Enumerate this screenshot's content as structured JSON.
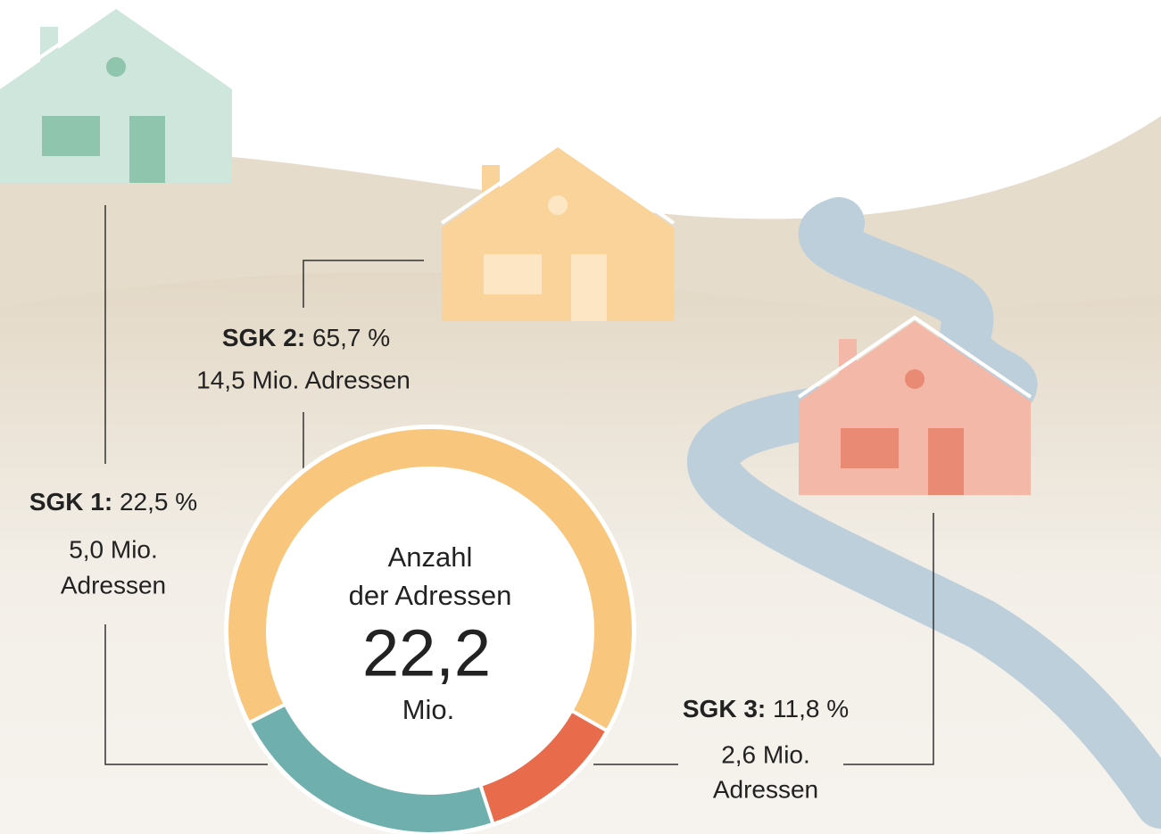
{
  "chart_data": {
    "type": "donut",
    "categories": [
      "SGK 1:",
      "SGK 2:",
      "SGK 3:"
    ],
    "values": [
      22.5,
      65.7,
      11.8
    ],
    "value_labels": [
      "22,5 %",
      "65,7 %",
      "11,8 %"
    ],
    "colors": [
      "#6fb0ae",
      "#f8c67c",
      "#e86b4b"
    ],
    "address_labels": [
      [
        "5,0 Mio.",
        "Adressen"
      ],
      [
        "14,5 Mio. Adressen"
      ],
      [
        "2,6 Mio.",
        "Adressen"
      ]
    ],
    "center_label": [
      "Anzahl",
      "der Adressen"
    ],
    "total_label": "22,2",
    "total_unit": "Mio."
  }
}
